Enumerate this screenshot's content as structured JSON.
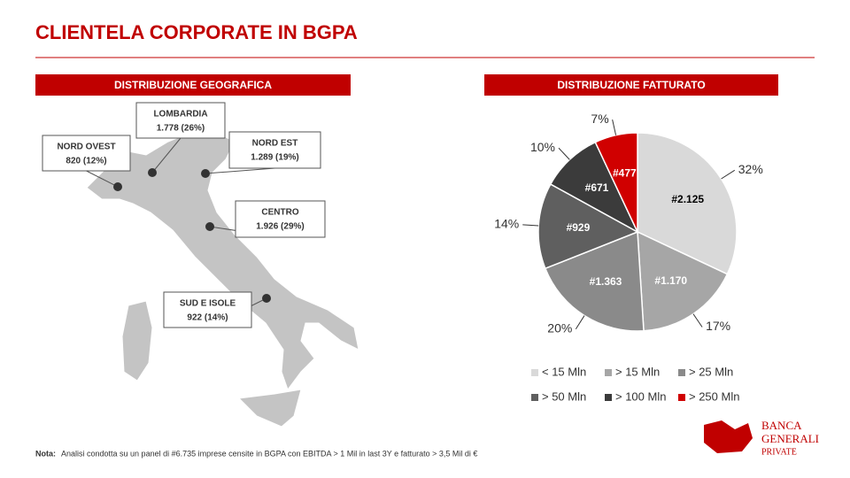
{
  "header": {
    "title": "CLIENTELA CORPORATE  IN BGPA"
  },
  "map": {
    "title": "DISTRIBUZIONE GEOGRAFICA",
    "regions": [
      {
        "name": "LOMBARDIA",
        "label": "1.778 (26%)"
      },
      {
        "name": "NORD OVEST",
        "label": "820 (12%)"
      },
      {
        "name": "NORD EST",
        "label": "1.289 (19%)"
      },
      {
        "name": "CENTRO",
        "label": "1.926 (29%)"
      },
      {
        "name": "SUD E ISOLE",
        "label": "922 (14%)"
      }
    ]
  },
  "chart_data": {
    "type": "pie",
    "title": "DISTRIBUZIONE FATTURATO",
    "categories": [
      "< 15 Mln",
      "> 15 Mln",
      "> 25 Mln",
      "> 50 Mln",
      "> 100 Mln",
      "> 250 Mln"
    ],
    "values": [
      32,
      17,
      20,
      14,
      10,
      7
    ],
    "value_labels": [
      "32%",
      "17%",
      "20%",
      "14%",
      "10%",
      "7%"
    ],
    "inner_labels": [
      "#2.125",
      "#1.170",
      "#1.363",
      "#929",
      "#671",
      "#477"
    ],
    "colors": [
      "#d9d9d9",
      "#a6a6a6",
      "#8a8a8a",
      "#5f5f5f",
      "#3b3b3b",
      "#d00000"
    ]
  },
  "footer": {
    "note_label": "Nota:",
    "note": "Analisi condotta su un panel di #6.735 imprese censite in BGPA con EBITDA > 1 Mil in last 3Y e fatturato > 3,5 Mil di €",
    "logo": [
      "BANCA",
      "GENERALI",
      "PRIVATE"
    ]
  }
}
